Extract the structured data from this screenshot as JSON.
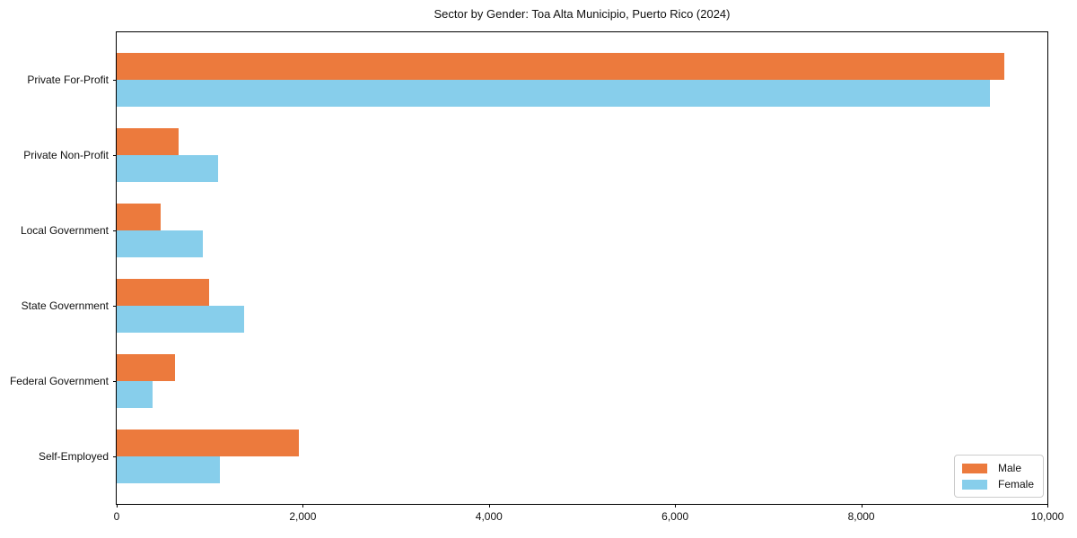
{
  "chart_data": {
    "type": "bar",
    "orientation": "horizontal",
    "title": "Sector by Gender: Toa Alta Municipio, Puerto Rico (2024)",
    "categories": [
      "Private For-Profit",
      "Private Non-Profit",
      "Local Government",
      "State Government",
      "Federal Government",
      "Self-Employed"
    ],
    "series": [
      {
        "name": "Male",
        "color": "#ec7a3d",
        "values": [
          9540,
          665,
          470,
          990,
          625,
          1955
        ]
      },
      {
        "name": "Female",
        "color": "#87ceeb",
        "values": [
          9385,
          1090,
          930,
          1365,
          385,
          1105
        ]
      }
    ],
    "xlabel": "",
    "ylabel": "",
    "xlim": [
      0,
      10000
    ],
    "xticks": [
      0,
      2000,
      4000,
      6000,
      8000,
      10000
    ],
    "xtick_labels": [
      "0",
      "2,000",
      "4,000",
      "6,000",
      "8,000",
      "10,000"
    ],
    "grid": false,
    "legend_position": "lower right",
    "legend_entries": [
      "Male",
      "Female"
    ]
  }
}
